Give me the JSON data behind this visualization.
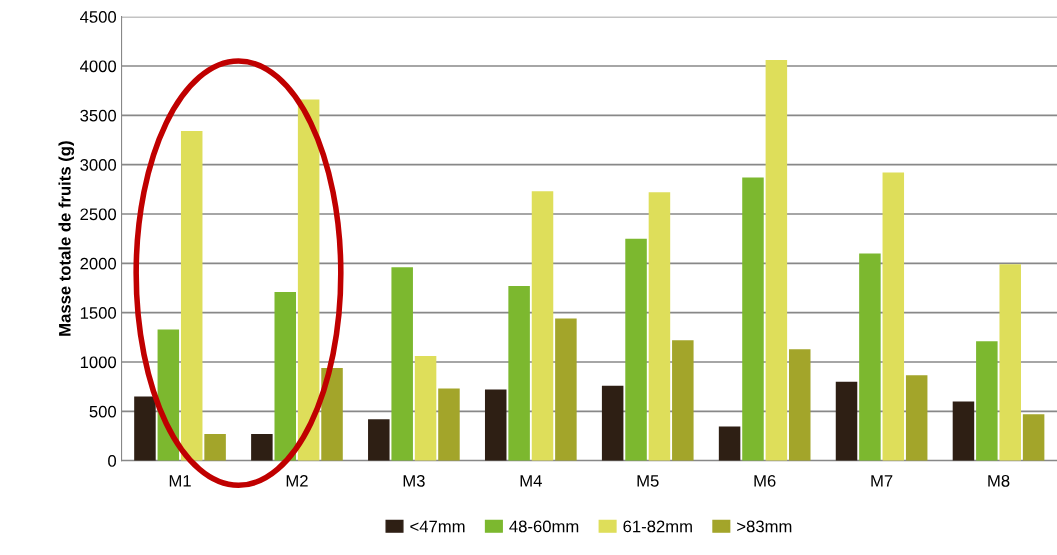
{
  "chart_data": {
    "type": "bar",
    "ylabel": "Masse totale de fruits (g)",
    "categories": [
      "M1",
      "M2",
      "M3",
      "M4",
      "M5",
      "M6",
      "M7",
      "M8"
    ],
    "series": [
      {
        "name": "<47mm",
        "color": "#2e1f14",
        "values": [
          650,
          270,
          420,
          720,
          760,
          345,
          800,
          600
        ]
      },
      {
        "name": "48-60mm",
        "color": "#7cb82f",
        "values": [
          1330,
          1710,
          1960,
          1770,
          2250,
          2870,
          2100,
          1210
        ]
      },
      {
        "name": "61-82mm",
        "color": "#dede5a",
        "values": [
          3340,
          3660,
          1060,
          2730,
          2720,
          4060,
          2920,
          1990
        ]
      },
      {
        "name": ">83mm",
        "color": "#a3a52a",
        "values": [
          270,
          940,
          730,
          1440,
          1220,
          1130,
          865,
          470
        ]
      }
    ],
    "ylim": [
      0,
      4500
    ],
    "yticks": [
      0,
      500,
      1000,
      1500,
      2000,
      2500,
      3000,
      3500,
      4000,
      4500
    ],
    "grid": "y",
    "legend": "bottom"
  }
}
